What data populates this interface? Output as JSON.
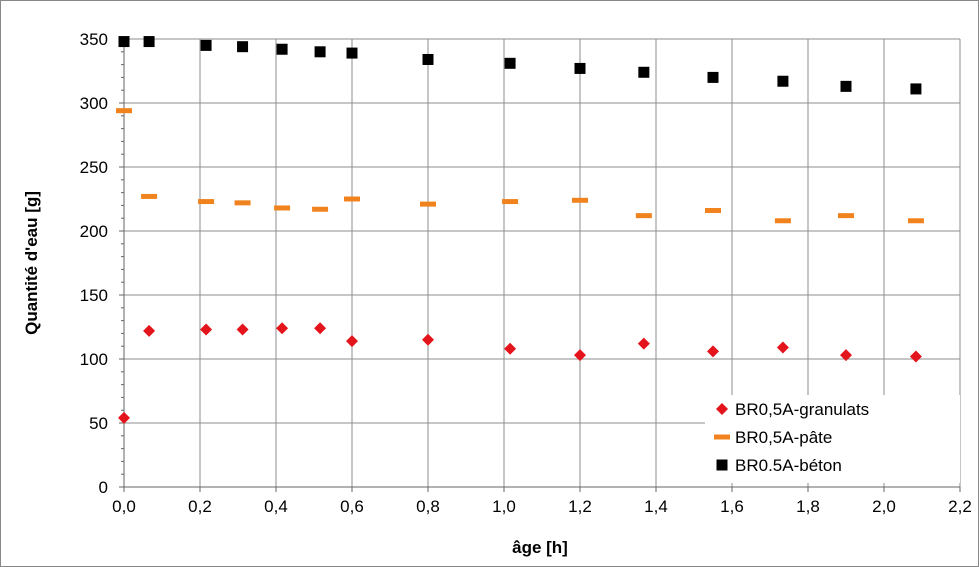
{
  "chart_data": {
    "type": "scatter",
    "xlabel": "âge [h]",
    "ylabel": "Quantité d'eau [g]",
    "xlim": [
      0,
      2.2
    ],
    "ylim": [
      0,
      350
    ],
    "xticks": [
      "0,0",
      "0,2",
      "0,4",
      "0,6",
      "0,8",
      "1,0",
      "1,2",
      "1,4",
      "1,6",
      "1,8",
      "2,0",
      "2,2"
    ],
    "yticks": [
      "0",
      "50",
      "100",
      "150",
      "200",
      "250",
      "300",
      "350"
    ],
    "grid": true,
    "legend_position": "bottom-right",
    "series": [
      {
        "name": "BR0,5A-granulats",
        "marker": "diamond",
        "color": "#e3141b",
        "points": [
          [
            0.0,
            54
          ],
          [
            0.066,
            122
          ],
          [
            0.216,
            123
          ],
          [
            0.312,
            123
          ],
          [
            0.416,
            124
          ],
          [
            0.516,
            124
          ],
          [
            0.6,
            114
          ],
          [
            0.8,
            115
          ],
          [
            1.016,
            108
          ],
          [
            1.2,
            103
          ],
          [
            1.368,
            112
          ],
          [
            1.55,
            106
          ],
          [
            1.734,
            109
          ],
          [
            1.9,
            103
          ],
          [
            2.084,
            102
          ]
        ]
      },
      {
        "name": "BR0,5A-pâte",
        "marker": "dash",
        "color": "#f0831e",
        "points": [
          [
            0.0,
            294
          ],
          [
            0.066,
            227
          ],
          [
            0.216,
            223
          ],
          [
            0.312,
            222
          ],
          [
            0.416,
            218
          ],
          [
            0.516,
            217
          ],
          [
            0.6,
            225
          ],
          [
            0.8,
            221
          ],
          [
            1.016,
            223
          ],
          [
            1.2,
            224
          ],
          [
            1.368,
            212
          ],
          [
            1.55,
            216
          ],
          [
            1.734,
            208
          ],
          [
            1.9,
            212
          ],
          [
            2.084,
            208
          ]
        ]
      },
      {
        "name": "BR0.5A-béton",
        "marker": "square",
        "color": "#000000",
        "points": [
          [
            0.0,
            348
          ],
          [
            0.066,
            348
          ],
          [
            0.216,
            345
          ],
          [
            0.312,
            344
          ],
          [
            0.416,
            342
          ],
          [
            0.516,
            340
          ],
          [
            0.6,
            339
          ],
          [
            0.8,
            334
          ],
          [
            1.016,
            331
          ],
          [
            1.2,
            327
          ],
          [
            1.368,
            324
          ],
          [
            1.55,
            320
          ],
          [
            1.734,
            317
          ],
          [
            1.9,
            313
          ],
          [
            2.084,
            311
          ]
        ]
      }
    ]
  }
}
